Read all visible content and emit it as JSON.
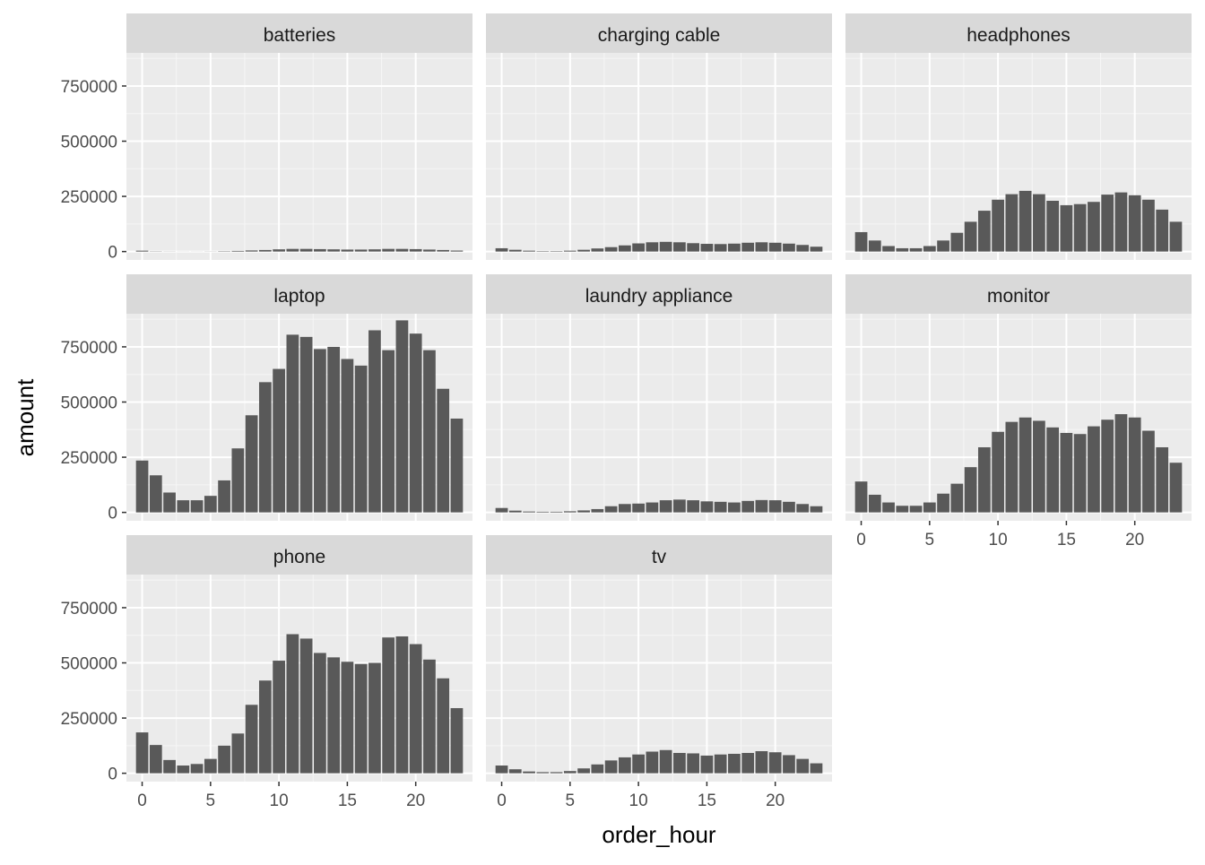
{
  "chart_data": {
    "type": "bar",
    "layout": "facet_wrap",
    "xlabel": "order_hour",
    "ylabel": "amount",
    "xlim": [
      -1.15,
      24.15
    ],
    "ylim": [
      -38000,
      900000
    ],
    "xticks": [
      0,
      5,
      10,
      15,
      20
    ],
    "yticks": [
      0,
      250000,
      500000,
      750000
    ],
    "ytick_labels": [
      "0",
      "250000",
      "500000",
      "750000"
    ],
    "grid": true,
    "bar_color": "#595959",
    "panel_background": "#ebebeb",
    "strip_background": "#d9d9d9",
    "x": [
      0,
      1,
      2,
      3,
      4,
      5,
      6,
      7,
      8,
      9,
      10,
      11,
      12,
      13,
      14,
      15,
      16,
      17,
      18,
      19,
      20,
      21,
      22,
      23
    ],
    "panels": [
      {
        "name": "batteries",
        "values": [
          4000,
          1000,
          500,
          300,
          300,
          500,
          1500,
          3000,
          5000,
          7000,
          10000,
          12000,
          12000,
          11000,
          10000,
          9000,
          9000,
          10000,
          12000,
          12000,
          11000,
          9000,
          7000,
          4500
        ]
      },
      {
        "name": "charging cable",
        "values": [
          15000,
          8000,
          4000,
          2000,
          2000,
          4000,
          8000,
          14000,
          20000,
          28000,
          37000,
          42000,
          44000,
          42000,
          38000,
          35000,
          34000,
          36000,
          40000,
          42000,
          40000,
          36000,
          30000,
          22000
        ]
      },
      {
        "name": "headphones",
        "values": [
          88000,
          50000,
          25000,
          15000,
          15000,
          25000,
          50000,
          85000,
          135000,
          185000,
          235000,
          260000,
          275000,
          260000,
          230000,
          210000,
          215000,
          225000,
          258000,
          268000,
          255000,
          235000,
          190000,
          135000
        ]
      },
      {
        "name": "laptop",
        "values": [
          235000,
          168000,
          90000,
          55000,
          55000,
          75000,
          145000,
          290000,
          440000,
          590000,
          650000,
          805000,
          795000,
          740000,
          750000,
          695000,
          665000,
          825000,
          735000,
          870000,
          810000,
          735000,
          560000,
          425000
        ]
      },
      {
        "name": "laundry appliance",
        "values": [
          20000,
          8000,
          4000,
          3000,
          3000,
          5000,
          9000,
          15000,
          28000,
          38000,
          40000,
          45000,
          55000,
          58000,
          55000,
          50000,
          48000,
          45000,
          52000,
          56000,
          55000,
          48000,
          38000,
          28000
        ]
      },
      {
        "name": "monitor",
        "values": [
          140000,
          80000,
          45000,
          30000,
          30000,
          45000,
          85000,
          130000,
          205000,
          295000,
          365000,
          410000,
          430000,
          415000,
          385000,
          360000,
          355000,
          390000,
          420000,
          445000,
          430000,
          370000,
          295000,
          225000
        ]
      },
      {
        "name": "phone",
        "values": [
          185000,
          128000,
          60000,
          35000,
          42000,
          65000,
          125000,
          180000,
          310000,
          420000,
          510000,
          630000,
          610000,
          545000,
          525000,
          505000,
          495000,
          500000,
          615000,
          620000,
          585000,
          515000,
          430000,
          295000
        ]
      },
      {
        "name": "tv",
        "values": [
          35000,
          18000,
          8000,
          5000,
          5000,
          10000,
          22000,
          40000,
          58000,
          72000,
          85000,
          98000,
          105000,
          92000,
          90000,
          80000,
          85000,
          88000,
          92000,
          100000,
          95000,
          82000,
          65000,
          45000
        ]
      }
    ]
  }
}
